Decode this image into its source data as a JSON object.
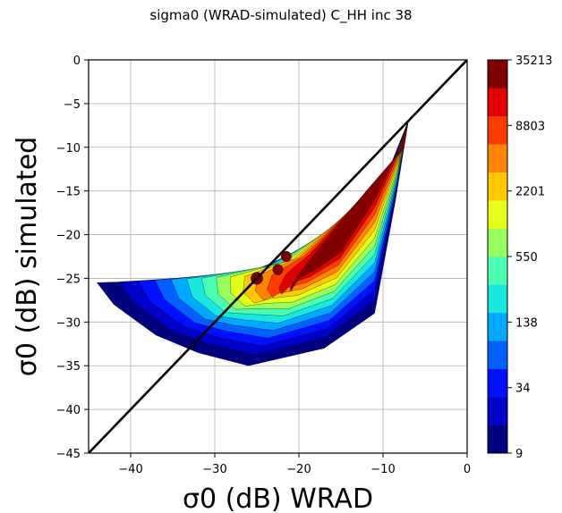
{
  "chart_data": {
    "type": "heatmap",
    "title": "sigma0 (WRAD-simulated) C_HH inc 38",
    "xlabel": "σ0 (dB) WRAD",
    "ylabel": "σ0 (dB) simulated",
    "xlim": [
      -45,
      0
    ],
    "ylim": [
      -45,
      0
    ],
    "x_ticks": [
      -40,
      -30,
      -20,
      -10,
      0
    ],
    "x_tick_labels": [
      "−40",
      "−30",
      "−20",
      "−10",
      "0"
    ],
    "y_ticks": [
      0,
      -5,
      -10,
      -15,
      -20,
      -25,
      -30,
      -35,
      -40,
      -45
    ],
    "y_tick_labels": [
      "0",
      "−5",
      "−10",
      "−15",
      "−20",
      "−25",
      "−30",
      "−35",
      "−40",
      "−45"
    ],
    "grid": true,
    "reference_line": "y = x",
    "colorbar": {
      "scale": "log",
      "levels": [
        9,
        34,
        138,
        550,
        2201,
        8803,
        35213
      ],
      "tick_labels": [
        "9",
        "34",
        "138",
        "550",
        "2201",
        "8803",
        "35213"
      ],
      "colors": [
        "#00007f",
        "#0000c8",
        "#0010ff",
        "#0060ff",
        "#00a8ff",
        "#18e8e0",
        "#4cffb0",
        "#98ff60",
        "#e6ff18",
        "#ffc800",
        "#ff8400",
        "#ff3c00",
        "#e00000",
        "#800000"
      ]
    },
    "contour_levels": [
      {
        "cx": -21.5,
        "cy": -22.5,
        "rx": 0.6,
        "ry": 0.6
      },
      {
        "cx": -22.5,
        "cy": -24.0,
        "rx": 0.6,
        "ry": 0.6
      },
      {
        "cx": -25.0,
        "cy": -25.0,
        "rx": 0.7,
        "ry": 0.7
      }
    ]
  }
}
